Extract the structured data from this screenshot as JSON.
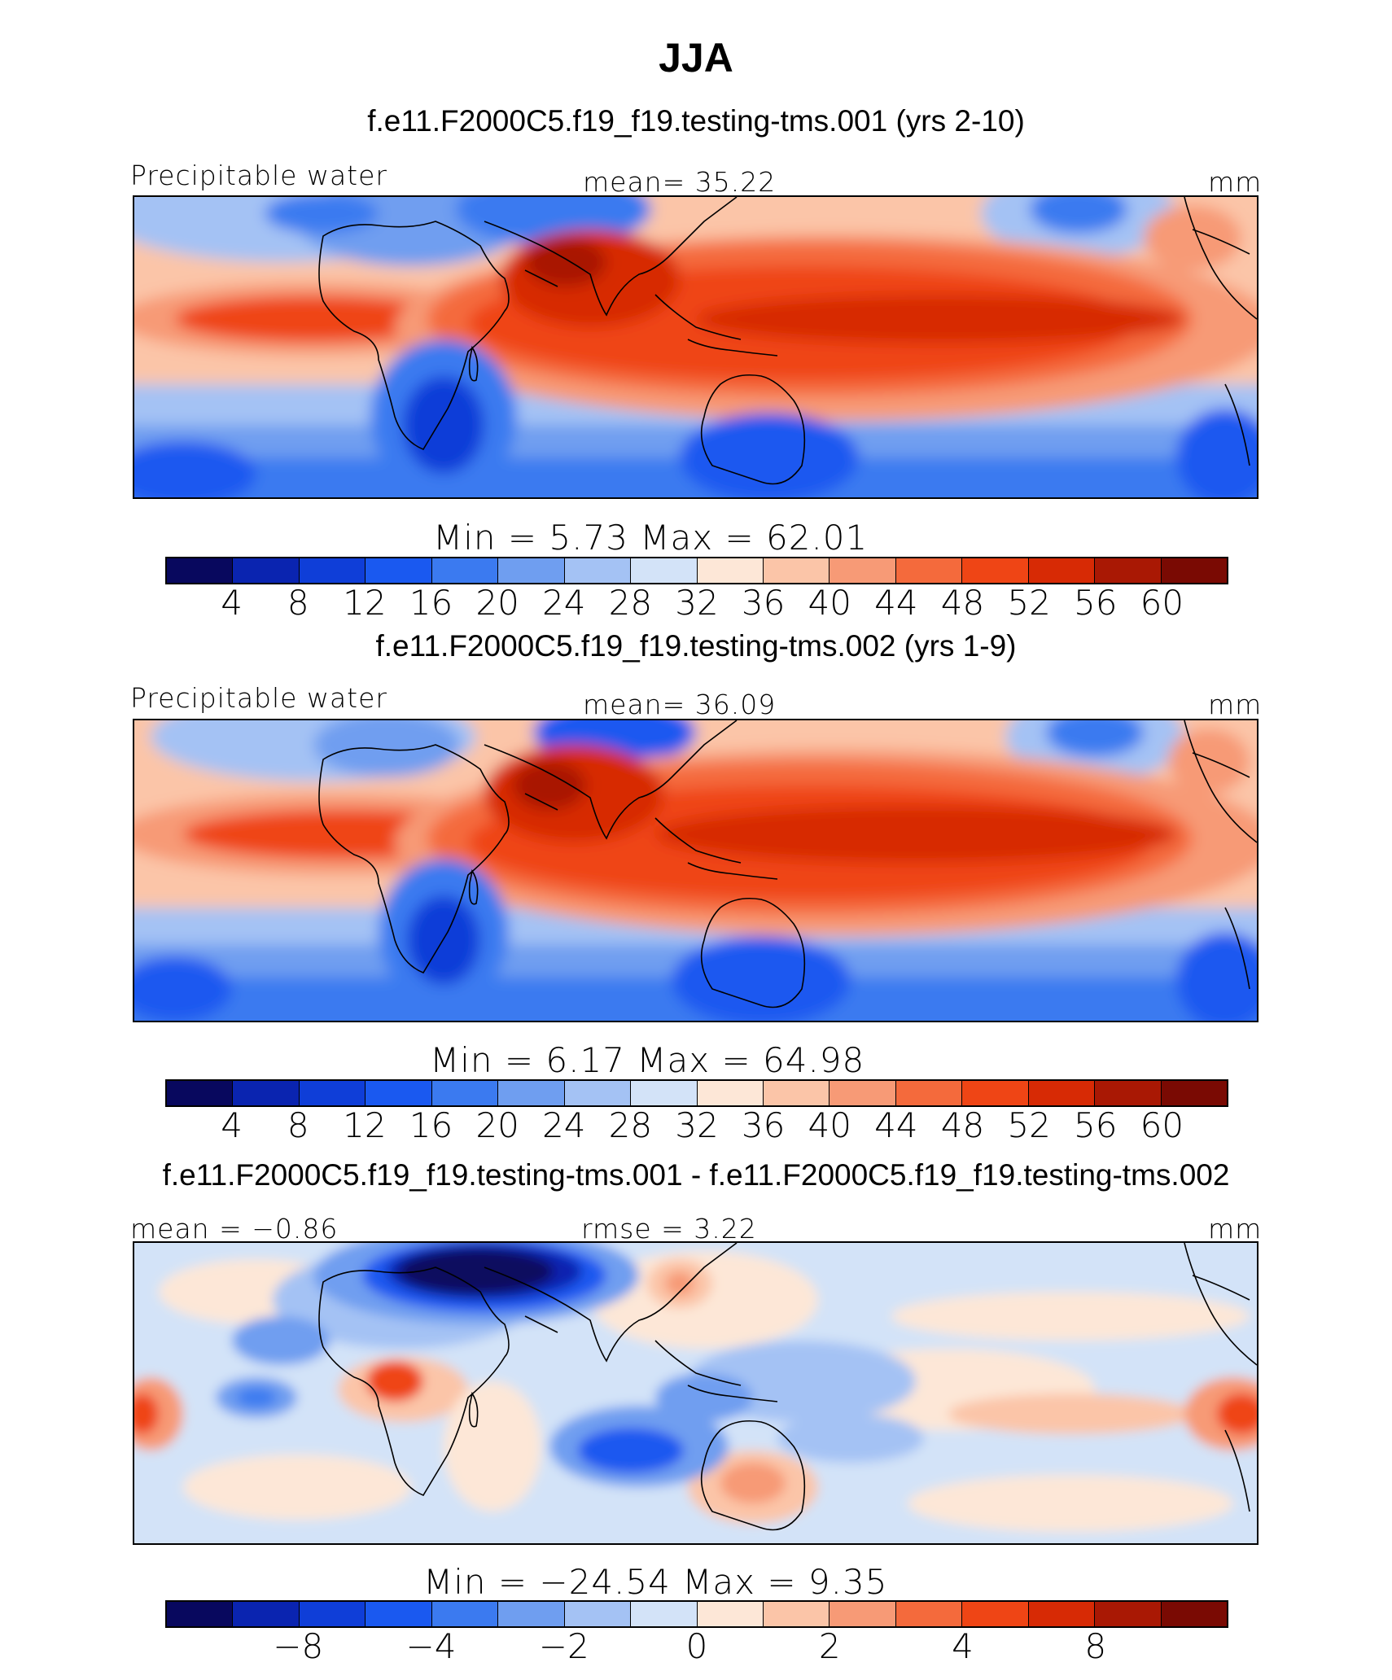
{
  "figure": {
    "season": "JJA"
  },
  "palette": [
    "#08085e",
    "#0a24b0",
    "#0f3ed8",
    "#1a59f0",
    "#3b7af0",
    "#6f9ef0",
    "#a4c2f4",
    "#d3e3f8",
    "#fde7d7",
    "#fbc5a8",
    "#f79a76",
    "#f46a3c",
    "#ef4515",
    "#d72a05",
    "#a91804",
    "#7a0a03"
  ],
  "land_outline_color": "#000000",
  "panels": [
    {
      "title": "f.e11.F2000C5.f19_f19.testing-tms.001 (yrs 2-10)",
      "left_label": "Precipitable water",
      "center_label": "mean=   35.22",
      "units": "mm",
      "minmax_label": "Min  =     5.73  Max  =    62.01",
      "colorbar_ticks": [
        "4",
        "8",
        "12",
        "16",
        "20",
        "24",
        "28",
        "32",
        "36",
        "40",
        "44",
        "48",
        "52",
        "56",
        "60"
      ]
    },
    {
      "title": "f.e11.F2000C5.f19_f19.testing-tms.002 (yrs 1-9)",
      "left_label": "Precipitable water",
      "center_label": "mean=   36.09",
      "units": "mm",
      "minmax_label": "Min  =     6.17  Max  =    64.98",
      "colorbar_ticks": [
        "4",
        "8",
        "12",
        "16",
        "20",
        "24",
        "28",
        "32",
        "36",
        "40",
        "44",
        "48",
        "52",
        "56",
        "60"
      ]
    },
    {
      "title": "f.e11.F2000C5.f19_f19.testing-tms.001 - f.e11.F2000C5.f19_f19.testing-tms.002",
      "left_label": "mean =  −0.86",
      "center_label": "rmse =     3.22",
      "units": "mm",
      "minmax_label": "Min  = −24.54  Max  =    9.35",
      "colorbar_ticks": [
        "−8",
        "−4",
        "−2",
        "0",
        "2",
        "4",
        "8"
      ]
    }
  ]
}
